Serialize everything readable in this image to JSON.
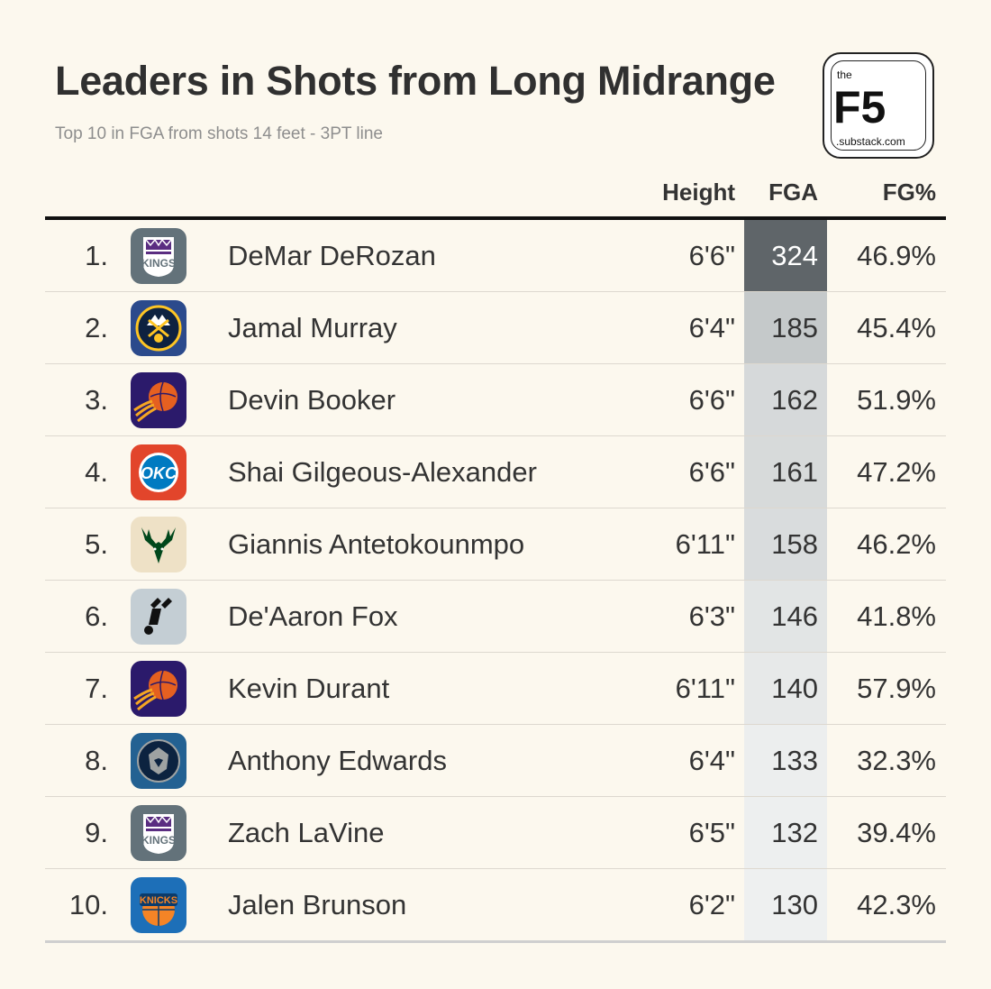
{
  "title": "Leaders in Shots from Long Midrange",
  "subtitle": "Top 10 in FGA from shots 14 feet - 3PT line",
  "logo": {
    "top_text": "the",
    "main_text": "F5",
    "bottom_text": ".substack.com"
  },
  "colors": {
    "background": "#fcf8ee",
    "fga_high": "#5f6569",
    "fga_low": "#eef0f0"
  },
  "chart_data": {
    "type": "table",
    "columns": [
      "",
      "",
      "",
      "Height",
      "FGA",
      "FG%"
    ],
    "rows": [
      {
        "rank": "1.",
        "team_icon": "sacramento-kings-icon",
        "player": "DeMar DeRozan",
        "height": "6'6\"",
        "fga": 324,
        "fg_pct": "46.9%"
      },
      {
        "rank": "2.",
        "team_icon": "denver-nuggets-icon",
        "player": "Jamal Murray",
        "height": "6'4\"",
        "fga": 185,
        "fg_pct": "45.4%"
      },
      {
        "rank": "3.",
        "team_icon": "phoenix-suns-icon",
        "player": "Devin Booker",
        "height": "6'6\"",
        "fga": 162,
        "fg_pct": "51.9%"
      },
      {
        "rank": "4.",
        "team_icon": "okc-thunder-icon",
        "player": "Shai Gilgeous-Alexander",
        "height": "6'6\"",
        "fga": 161,
        "fg_pct": "47.2%"
      },
      {
        "rank": "5.",
        "team_icon": "milwaukee-bucks-icon",
        "player": "Giannis Antetokounmpo",
        "height": "6'11\"",
        "fga": 158,
        "fg_pct": "46.2%"
      },
      {
        "rank": "6.",
        "team_icon": "san-antonio-spurs-icon",
        "player": "De'Aaron Fox",
        "height": "6'3\"",
        "fga": 146,
        "fg_pct": "41.8%"
      },
      {
        "rank": "7.",
        "team_icon": "phoenix-suns-icon",
        "player": "Kevin Durant",
        "height": "6'11\"",
        "fga": 140,
        "fg_pct": "57.9%"
      },
      {
        "rank": "8.",
        "team_icon": "minnesota-timberwolves-icon",
        "player": "Anthony Edwards",
        "height": "6'4\"",
        "fga": 133,
        "fg_pct": "32.3%"
      },
      {
        "rank": "9.",
        "team_icon": "sacramento-kings-icon",
        "player": "Zach LaVine",
        "height": "6'5\"",
        "fga": 132,
        "fg_pct": "39.4%"
      },
      {
        "rank": "10.",
        "team_icon": "new-york-knicks-icon",
        "player": "Jalen Brunson",
        "height": "6'2\"",
        "fga": 130,
        "fg_pct": "42.3%"
      }
    ]
  }
}
